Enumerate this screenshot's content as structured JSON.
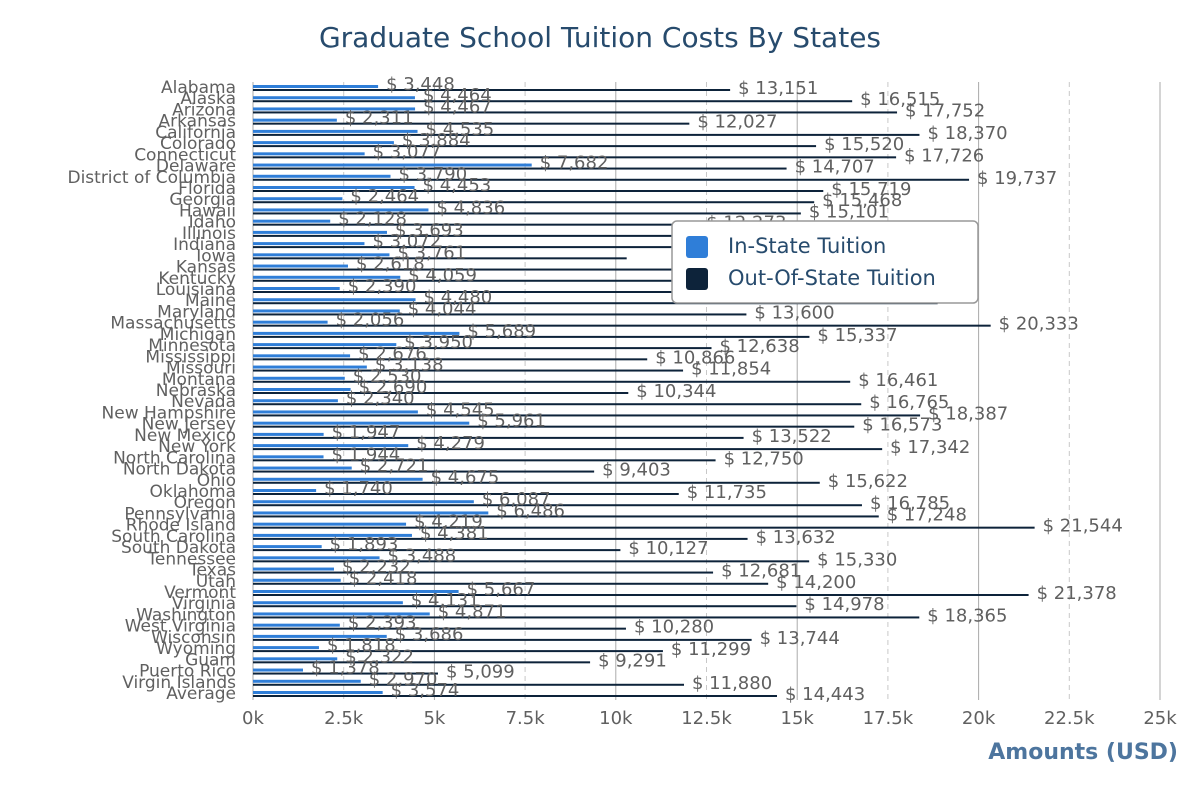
{
  "chart_data": {
    "type": "hbar",
    "title": "Graduate School Tuition Costs By States",
    "x_axis_label": "Amounts (USD)",
    "categories": [
      "Alabama",
      "Alaska",
      "Arizona",
      "Arkansas",
      "California",
      "Colorado",
      "Connecticut",
      "Delaware",
      "District of Columbia",
      "Florida",
      "Georgia",
      "Hawaii",
      "Idaho",
      "Illinois",
      "Indiana",
      "Iowa",
      "Kansas",
      "Kentucky",
      "Louisiana",
      "Maine",
      "Maryland",
      "Massachusetts",
      "Michigan",
      "Minnesota",
      "Mississippi",
      "Missouri",
      "Montana",
      "Nebraska",
      "Nevada",
      "New Hampshire",
      "New Jersey",
      "New Mexico",
      "New York",
      "North Carolina",
      "North Dakota",
      "Ohio",
      "Oklahoma",
      "Oregon",
      "Pennsylvania",
      "Rhode Island",
      "South Carolina",
      "South Dakota",
      "Tennessee",
      "Texas",
      "Utah",
      "Vermont",
      "Virginia",
      "Washington",
      "West Virginia",
      "Wisconsin",
      "Wyoming",
      "Guam",
      "Puerto Rico",
      "Virgin Islands",
      "Average"
    ],
    "series": [
      {
        "name": "In-State Tuition",
        "color": "#2f7ed8",
        "values": [
          3448,
          4464,
          4467,
          2311,
          4535,
          3884,
          3077,
          7682,
          3790,
          4453,
          2464,
          4836,
          2128,
          3693,
          3072,
          3761,
          2618,
          4059,
          2390,
          4480,
          4044,
          2056,
          5689,
          3950,
          2676,
          3138,
          2530,
          2690,
          2340,
          4545,
          5961,
          1947,
          4279,
          1944,
          2721,
          4675,
          1740,
          6087,
          6486,
          4219,
          4381,
          1893,
          3488,
          2232,
          2418,
          5667,
          4131,
          4871,
          2393,
          3686,
          1818,
          2322,
          1378,
          2970,
          3574
        ],
        "value_labels": [
          "$ 3,448",
          "$ 4,464",
          "$ 4,467",
          "$ 2,311",
          "$ 4,535",
          "$ 3,884",
          "$ 3,077",
          "$ 7,682",
          "$ 3,790",
          "$ 4,453",
          "$ 2,464",
          "$ 4,836",
          "$ 2,128",
          "$ 3,693",
          "$ 3,072",
          "$ 3,761",
          "$ 2,618",
          "$ 4,059",
          "$ 2,390",
          "$ 4,480",
          "$ 4,044",
          "$ 2,056",
          "$ 5,689",
          "$ 3,950",
          "$ 2,676",
          "$ 3,138",
          "$ 2,530",
          "$ 2,690",
          "$ 2,340",
          "$ 4,545",
          "$ 5,961",
          "$ 1,947",
          "$ 4,279",
          "$ 1,944",
          "$ 2,721",
          "$ 4,675",
          "$ 1,740",
          "$ 6,087",
          "$ 6,486",
          "$ 4,219",
          "$ 4,381",
          "$ 1,893",
          "$ 3,488",
          "$ 2,232",
          "$ 2,418",
          "$ 5,667",
          "$ 4,131",
          "$ 4,871",
          "$ 2,393",
          "$ 3,686",
          "$ 1,818",
          "$ 2,322",
          "$ 1,378",
          "$ 2,970",
          "$ 3,574"
        ]
      },
      {
        "name": "Out-Of-State Tuition",
        "color": "#0d233a",
        "values": [
          13151,
          16515,
          17752,
          12027,
          18370,
          15520,
          17726,
          14707,
          19737,
          15719,
          15468,
          15101,
          12273,
          13000,
          14000,
          10300,
          12000,
          14500,
          12000,
          18871,
          13600,
          20333,
          15337,
          12638,
          10866,
          11854,
          16461,
          10344,
          16765,
          18387,
          16573,
          13522,
          17342,
          12750,
          9403,
          15622,
          11735,
          16785,
          17248,
          21544,
          13632,
          10127,
          15330,
          12681,
          14200,
          21378,
          14978,
          18365,
          10280,
          13744,
          11299,
          9291,
          5099,
          11880,
          14443
        ],
        "value_labels": [
          "$ 13,151",
          "$ 16,515",
          "$ 17,752",
          "$ 12,027",
          "$ 18,370",
          "$ 15,520",
          "$ 17,726",
          "$ 14,707",
          "$ 19,737",
          "$ 15,719",
          "$ 15,468",
          "$ 15,101",
          "$ 12,273",
          null,
          null,
          null,
          null,
          null,
          null,
          null,
          "$ 13,600",
          "$ 20,333",
          "$ 15,337",
          "$ 12,638",
          "$ 10,866",
          "$ 11,854",
          "$ 16,461",
          "$ 10,344",
          "$ 16,765",
          "$ 18,387",
          "$ 16,573",
          "$ 13,522",
          "$ 17,342",
          "$ 12,750",
          "$ 9,403",
          "$ 15,622",
          "$ 11,735",
          "$ 16,785",
          "$ 17,248",
          "$ 21,544",
          "$ 13,632",
          "$ 10,127",
          "$ 15,330",
          "$ 12,681",
          "$ 14,200",
          "$ 21,378",
          "$ 14,978",
          "$ 18,365",
          "$ 10,280",
          "$ 13,744",
          "$ 11,299",
          "$ 9,291",
          "$ 5,099",
          "$ 11,880",
          "$ 14,443"
        ]
      }
    ],
    "xlim": [
      0,
      25000
    ],
    "xticks": [
      {
        "value": 0,
        "label": "0k"
      },
      {
        "value": 2500,
        "label": "2.5k"
      },
      {
        "value": 5000,
        "label": "5k"
      },
      {
        "value": 7500,
        "label": "7.5k"
      },
      {
        "value": 10000,
        "label": "10k"
      },
      {
        "value": 12500,
        "label": "12.5k"
      },
      {
        "value": 15000,
        "label": "15k"
      },
      {
        "value": 17500,
        "label": "17.5k"
      },
      {
        "value": 20000,
        "label": "20k"
      },
      {
        "value": 22500,
        "label": "22.5k"
      },
      {
        "value": 25000,
        "label": "25k"
      }
    ],
    "grid": true,
    "legend": "top-right"
  }
}
